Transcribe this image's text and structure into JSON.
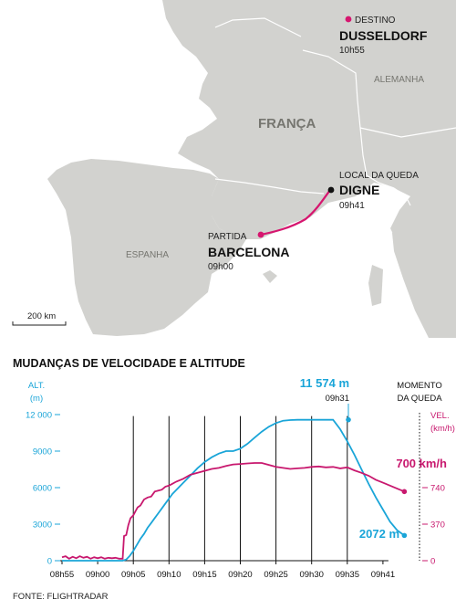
{
  "map": {
    "countries": {
      "france": "FRANÇA",
      "spain": "ESPANHA",
      "germany": "ALEMANHA"
    },
    "destination": {
      "caption": "DESTINO",
      "city": "DUSSELDORF",
      "time": "10h55"
    },
    "crash": {
      "caption": "LOCAL DA QUEDA",
      "city": "DIGNE",
      "time": "09h41"
    },
    "departure": {
      "caption": "PARTIDA",
      "city": "BARCELONA",
      "time": "09h00"
    },
    "scale": "200 km",
    "colors": {
      "sea": "#ffffff",
      "land": "#d2d2cf",
      "route": "#d6166f",
      "border": "#ffffff"
    }
  },
  "chart_data": {
    "type": "line",
    "title": "MUDANÇAS DE VELOCIDADE E ALTITUDE",
    "left_axis_label": [
      "ALT.",
      "(m)"
    ],
    "right_axis_label": [
      "VEL.",
      "(km/h)"
    ],
    "x_ticks": [
      "08h55",
      "09h00",
      "09h05",
      "09h10",
      "09h15",
      "09h20",
      "09h25",
      "09h30",
      "09h35",
      "09h41"
    ],
    "left_ticks": [
      "12 000",
      "9000",
      "6000",
      "3000",
      "0"
    ],
    "left_tick_values": [
      12000,
      9000,
      6000,
      3000,
      0
    ],
    "right_ticks": [
      "740",
      "370",
      "0"
    ],
    "right_tick_values": [
      740,
      370,
      0
    ],
    "ylim_altitude": [
      0,
      12000
    ],
    "ylim_speed": [
      0,
      1480
    ],
    "series": [
      {
        "name": "altitude",
        "color": "#1aa5d8",
        "unit": "m",
        "points": [
          [
            0,
            0
          ],
          [
            4,
            0
          ],
          [
            7,
            0
          ],
          [
            8.5,
            0
          ],
          [
            9,
            100
          ],
          [
            9.5,
            400
          ],
          [
            10,
            800
          ],
          [
            10.5,
            1300
          ],
          [
            11,
            1800
          ],
          [
            11.5,
            2200
          ],
          [
            12,
            2700
          ],
          [
            12.5,
            3100
          ],
          [
            13,
            3500
          ],
          [
            13.5,
            3900
          ],
          [
            14,
            4300
          ],
          [
            14.5,
            4700
          ],
          [
            15,
            5100
          ],
          [
            15.5,
            5500
          ],
          [
            16,
            5800
          ],
          [
            17,
            6400
          ],
          [
            18,
            7000
          ],
          [
            19,
            7600
          ],
          [
            20,
            8100
          ],
          [
            21,
            8500
          ],
          [
            22,
            8800
          ],
          [
            23,
            9000
          ],
          [
            24,
            9000
          ],
          [
            25,
            9200
          ],
          [
            26,
            9600
          ],
          [
            27,
            10100
          ],
          [
            28,
            10600
          ],
          [
            29,
            11000
          ],
          [
            30,
            11300
          ],
          [
            31,
            11500
          ],
          [
            32,
            11550
          ],
          [
            33,
            11574
          ],
          [
            34,
            11574
          ],
          [
            35,
            11574
          ],
          [
            36,
            11574
          ],
          [
            37,
            11574
          ],
          [
            38,
            11574
          ],
          [
            39,
            10800
          ],
          [
            40,
            9800
          ],
          [
            41,
            8700
          ],
          [
            42,
            7500
          ],
          [
            43,
            6300
          ],
          [
            44,
            5200
          ],
          [
            45,
            4200
          ],
          [
            46,
            3200
          ],
          [
            47,
            2500
          ],
          [
            48,
            2072
          ]
        ]
      },
      {
        "name": "speed",
        "color": "#c8186e",
        "unit": "km/h",
        "points": [
          [
            0,
            35
          ],
          [
            0.5,
            45
          ],
          [
            1,
            20
          ],
          [
            1.5,
            40
          ],
          [
            2,
            25
          ],
          [
            2.5,
            45
          ],
          [
            3,
            30
          ],
          [
            3.5,
            40
          ],
          [
            4,
            20
          ],
          [
            4.5,
            35
          ],
          [
            5,
            25
          ],
          [
            5.5,
            35
          ],
          [
            6,
            20
          ],
          [
            6.5,
            30
          ],
          [
            7,
            25
          ],
          [
            7.5,
            30
          ],
          [
            8,
            20
          ],
          [
            8.5,
            20
          ],
          [
            8.7,
            250
          ],
          [
            9,
            260
          ],
          [
            9.3,
            360
          ],
          [
            9.6,
            430
          ],
          [
            10,
            460
          ],
          [
            10.3,
            500
          ],
          [
            10.6,
            540
          ],
          [
            11,
            560
          ],
          [
            11.5,
            620
          ],
          [
            12,
            640
          ],
          [
            12.5,
            650
          ],
          [
            13,
            700
          ],
          [
            13.5,
            710
          ],
          [
            14,
            720
          ],
          [
            14.5,
            750
          ],
          [
            15,
            760
          ],
          [
            15.5,
            780
          ],
          [
            16,
            800
          ],
          [
            17,
            830
          ],
          [
            18,
            870
          ],
          [
            19,
            890
          ],
          [
            20,
            910
          ],
          [
            21,
            930
          ],
          [
            22,
            940
          ],
          [
            23,
            960
          ],
          [
            24,
            975
          ],
          [
            25,
            980
          ],
          [
            26,
            985
          ],
          [
            27,
            990
          ],
          [
            28,
            990
          ],
          [
            29,
            970
          ],
          [
            30,
            950
          ],
          [
            31,
            940
          ],
          [
            32,
            930
          ],
          [
            33,
            935
          ],
          [
            34,
            940
          ],
          [
            35,
            950
          ],
          [
            36,
            955
          ],
          [
            37,
            945
          ],
          [
            38,
            950
          ],
          [
            39,
            935
          ],
          [
            40,
            945
          ],
          [
            41,
            915
          ],
          [
            42,
            890
          ],
          [
            43,
            860
          ],
          [
            44,
            820
          ],
          [
            45,
            790
          ],
          [
            46,
            760
          ],
          [
            47,
            730
          ],
          [
            48,
            700
          ]
        ]
      }
    ],
    "annotations": {
      "peak_value": "11 574 m",
      "peak_time": "09h31",
      "crash_label": [
        "MOMENTO",
        "DA QUEDA"
      ],
      "speed_end": "700 km/h",
      "altitude_end": "2072 m"
    },
    "grid": "vertical"
  },
  "source": "FONTE: FLIGHTRADAR"
}
